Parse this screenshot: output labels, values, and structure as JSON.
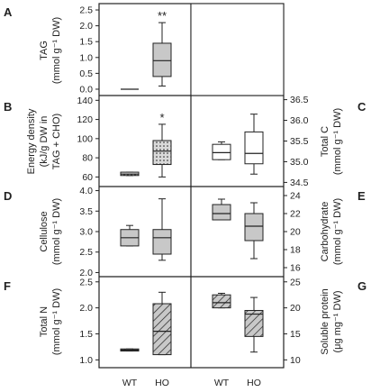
{
  "chart_data": {
    "type": "box",
    "categories": [
      "WT",
      "HO"
    ],
    "panels": [
      {
        "letter": "A",
        "ylabel": [
          "TAG",
          "(mmol g⁻¹ DW)"
        ],
        "ylim": [
          -0.2,
          2.7
        ],
        "ticks": [
          0.0,
          0.5,
          1.0,
          1.5,
          2.0,
          2.5
        ],
        "tick_labels": [
          "0.0",
          "0.5",
          "1.0",
          "1.5",
          "2.0",
          "2.5"
        ],
        "boxes": [
          {
            "category": "WT",
            "q1": 0.0,
            "median": 0.0,
            "q3": 0.0,
            "whisker_low": 0.0,
            "whisker_high": 0.0,
            "fill": "none"
          },
          {
            "category": "HO",
            "q1": 0.4,
            "median": 0.9,
            "q3": 1.45,
            "whisker_low": 0.1,
            "whisker_high": 2.1,
            "fill": "gray",
            "annotation": "**"
          }
        ]
      },
      {
        "letter": "B",
        "ylabel": [
          "Energy density",
          "(kJ/g DW in",
          "TAG + CHO)"
        ],
        "ylim": [
          50,
          145
        ],
        "ticks": [
          60,
          80,
          100,
          120,
          140
        ],
        "tick_labels": [
          "60",
          "80",
          "100",
          "120",
          "140"
        ],
        "boxes": [
          {
            "category": "WT",
            "q1": 61.5,
            "median": 63,
            "q3": 65,
            "whisker_low": 61.5,
            "whisker_high": 65,
            "fill": "dots"
          },
          {
            "category": "HO",
            "q1": 73,
            "median": 87,
            "q3": 98,
            "whisker_low": 60,
            "whisker_high": 115,
            "fill": "dots",
            "annotation": "*"
          }
        ]
      },
      {
        "letter": "C",
        "ylabel": [
          "Total C",
          "(mmol g⁻¹ DW)"
        ],
        "ylim": [
          34.4,
          36.6
        ],
        "ticks": [
          34.5,
          35.0,
          35.5,
          36.0,
          36.5
        ],
        "tick_labels": [
          "34.5",
          "35.0",
          "35.5",
          "36.0",
          "36.5"
        ],
        "boxes": [
          {
            "category": "WT",
            "q1": 35.05,
            "median": 35.22,
            "q3": 35.42,
            "whisker_low": 35.05,
            "whisker_high": 35.48,
            "fill": "none"
          },
          {
            "category": "HO",
            "q1": 34.95,
            "median": 35.2,
            "q3": 35.72,
            "whisker_low": 34.7,
            "whisker_high": 36.15,
            "fill": "none"
          }
        ]
      },
      {
        "letter": "D",
        "ylabel": [
          "Cellulose",
          "(mmol g⁻¹ DW)"
        ],
        "ylim": [
          1.9,
          4.1
        ],
        "ticks": [
          2.0,
          2.5,
          3.0,
          3.5,
          4.0
        ],
        "tick_labels": [
          "2.0",
          "2.5",
          "3.0",
          "3.5",
          "4.0"
        ],
        "boxes": [
          {
            "category": "WT",
            "q1": 2.65,
            "median": 2.85,
            "q3": 3.05,
            "whisker_low": 2.65,
            "whisker_high": 3.15,
            "fill": "gray"
          },
          {
            "category": "HO",
            "q1": 2.45,
            "median": 2.85,
            "q3": 3.05,
            "whisker_low": 2.3,
            "whisker_high": 3.8,
            "fill": "gray"
          }
        ]
      },
      {
        "letter": "E",
        "ylabel": [
          "Carbohydrate",
          "(mmol g⁻¹ DW)"
        ],
        "ylim": [
          15,
          25
        ],
        "ticks": [
          16,
          18,
          20,
          22,
          24
        ],
        "tick_labels": [
          "16",
          "18",
          "20",
          "22",
          "24"
        ],
        "boxes": [
          {
            "category": "WT",
            "q1": 21.3,
            "median": 22.0,
            "q3": 23.0,
            "whisker_low": 21.3,
            "whisker_high": 23.6,
            "fill": "gray"
          },
          {
            "category": "HO",
            "q1": 19.0,
            "median": 20.6,
            "q3": 22.0,
            "whisker_low": 17.0,
            "whisker_high": 23.2,
            "fill": "gray"
          }
        ]
      },
      {
        "letter": "F",
        "ylabel": [
          "Total N",
          "(mmol g⁻¹ DW)"
        ],
        "ylim": [
          0.85,
          2.6
        ],
        "ticks": [
          1.0,
          1.5,
          2.0,
          2.5
        ],
        "tick_labels": [
          "1.0",
          "1.5",
          "2.0",
          "2.5"
        ],
        "boxes": [
          {
            "category": "WT",
            "q1": 1.17,
            "median": 1.19,
            "q3": 1.21,
            "whisker_low": 1.17,
            "whisker_high": 1.21,
            "fill": "hatch"
          },
          {
            "category": "HO",
            "q1": 1.1,
            "median": 1.55,
            "q3": 2.08,
            "whisker_low": 1.1,
            "whisker_high": 2.3,
            "fill": "hatch"
          }
        ]
      },
      {
        "letter": "G",
        "ylabel": [
          "Soluble protein",
          "(μg mg⁻¹ DW)"
        ],
        "ylim": [
          8.5,
          26
        ],
        "ticks": [
          10,
          15,
          20,
          25
        ],
        "tick_labels": [
          "10",
          "15",
          "20",
          "25"
        ],
        "boxes": [
          {
            "category": "WT",
            "q1": 20.0,
            "median": 21.0,
            "q3": 22.5,
            "whisker_low": 20.0,
            "whisker_high": 22.8,
            "fill": "hatch"
          },
          {
            "category": "HO",
            "q1": 14.5,
            "median": 18.8,
            "q3": 19.5,
            "whisker_low": 11.5,
            "whisker_high": 22.0,
            "fill": "hatch"
          }
        ]
      }
    ]
  }
}
